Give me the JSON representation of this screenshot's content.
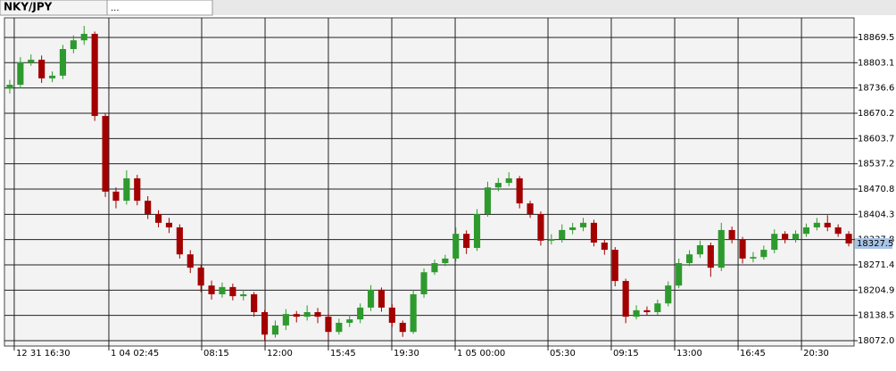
{
  "tabs": [
    "NKY/JPY",
    "..."
  ],
  "chart_data": {
    "type": "candlestick",
    "open": [
      18735,
      18745,
      18804,
      18811,
      18762,
      18769,
      18839,
      18862,
      18879,
      18663,
      18464,
      18440,
      18499,
      18440,
      18405,
      18382,
      18370,
      18299,
      18264,
      18217,
      18194,
      18213,
      18189,
      18194,
      18147,
      18088,
      18112,
      18142,
      18135,
      18147,
      18135,
      18095,
      18119,
      18128,
      18159,
      18206,
      18159,
      18119,
      18095,
      18194,
      18252,
      18276,
      18288,
      18353,
      18316,
      18405,
      18475,
      18487,
      18499,
      18433,
      18405,
      18335,
      18339,
      18363,
      18370,
      18382,
      18330,
      18311,
      18229,
      18135,
      18152,
      18147,
      18170,
      18217,
      18276,
      18299,
      18323,
      18264,
      18363,
      18339,
      18288,
      18292,
      18311,
      18353,
      18339,
      18353,
      18370,
      18382,
      18370,
      18353
    ],
    "high": [
      18758,
      18818,
      18825,
      18822,
      18780,
      18850,
      18875,
      18900,
      18885,
      18670,
      18475,
      18520,
      18508,
      18452,
      18415,
      18395,
      18378,
      18310,
      18272,
      18230,
      18225,
      18222,
      18205,
      18200,
      18152,
      18125,
      18155,
      18150,
      18165,
      18158,
      18145,
      18130,
      18140,
      18170,
      18218,
      18212,
      18168,
      18125,
      18205,
      18262,
      18285,
      18298,
      18370,
      18362,
      18418,
      18490,
      18500,
      18515,
      18505,
      18440,
      18412,
      18352,
      18378,
      18382,
      18395,
      18390,
      18338,
      18318,
      18235,
      18165,
      18162,
      18180,
      18228,
      18288,
      18310,
      18335,
      18330,
      18382,
      18372,
      18345,
      18305,
      18322,
      18365,
      18360,
      18362,
      18380,
      18395,
      18402,
      18378,
      18360
    ],
    "low": [
      18722,
      18736,
      18795,
      18750,
      18752,
      18760,
      18828,
      18850,
      18650,
      18450,
      18420,
      18430,
      18428,
      18392,
      18370,
      18355,
      18288,
      18250,
      18200,
      18180,
      18185,
      18178,
      18178,
      18135,
      18072,
      18080,
      18100,
      18120,
      18125,
      18118,
      18080,
      18088,
      18108,
      18118,
      18150,
      18148,
      18108,
      18082,
      18090,
      18185,
      18245,
      18268,
      18280,
      18300,
      18308,
      18398,
      18465,
      18478,
      18420,
      18395,
      18322,
      18325,
      18330,
      18352,
      18360,
      18320,
      18298,
      18215,
      18118,
      18128,
      18138,
      18140,
      18162,
      18210,
      18268,
      18290,
      18240,
      18255,
      18328,
      18275,
      18278,
      18285,
      18302,
      18328,
      18330,
      18345,
      18362,
      18360,
      18345,
      18320
    ],
    "close": [
      18745,
      18804,
      18811,
      18762,
      18769,
      18839,
      18862,
      18879,
      18663,
      18464,
      18440,
      18499,
      18440,
      18405,
      18382,
      18370,
      18299,
      18264,
      18217,
      18194,
      18213,
      18189,
      18194,
      18147,
      18088,
      18112,
      18142,
      18135,
      18147,
      18135,
      18095,
      18119,
      18128,
      18159,
      18206,
      18159,
      18119,
      18095,
      18194,
      18252,
      18276,
      18288,
      18353,
      18316,
      18405,
      18475,
      18487,
      18499,
      18433,
      18405,
      18335,
      18339,
      18363,
      18370,
      18382,
      18330,
      18311,
      18229,
      18135,
      18152,
      18147,
      18170,
      18217,
      18276,
      18299,
      18323,
      18264,
      18363,
      18339,
      18288,
      18292,
      18311,
      18353,
      18339,
      18353,
      18370,
      18382,
      18370,
      18353,
      18327.5
    ],
    "up_color": "#2e9a2e",
    "down_color": "#a30000",
    "xlim": [
      -0.5,
      79.5
    ],
    "xticks": [
      {
        "value": 0.42,
        "label": "12 31 16:30"
      },
      {
        "value": 9.33,
        "label": "1 04 02:45"
      },
      {
        "value": 18.07,
        "label": "08:15"
      },
      {
        "value": 24.04,
        "label": "12:00"
      },
      {
        "value": 30.0,
        "label": "15:45"
      },
      {
        "value": 35.97,
        "label": "19:30"
      },
      {
        "value": 41.94,
        "label": "1 05 00:00"
      },
      {
        "value": 50.68,
        "label": "05:30"
      },
      {
        "value": 56.64,
        "label": "09:15"
      },
      {
        "value": 62.61,
        "label": "13:00"
      },
      {
        "value": 68.58,
        "label": "16:45"
      },
      {
        "value": 74.55,
        "label": "20:30"
      }
    ],
    "ylim": [
      18057.9,
      18921.1
    ],
    "yticks": [
      {
        "value": 18072,
        "label": "18072.0"
      },
      18138.5,
      18204.9,
      18271.4,
      18337.8,
      18404.3,
      18470.8,
      18537.2,
      18603.7,
      18670.2,
      18736.6,
      18803.1,
      18869.5
    ],
    "grid": true
  }
}
